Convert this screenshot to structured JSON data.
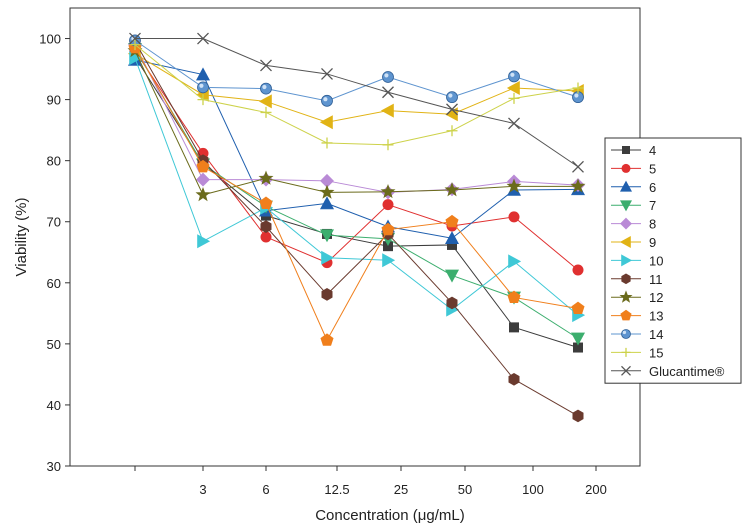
{
  "chart_data": {
    "type": "line",
    "title": "",
    "xlabel": "Concentration (μg/mL)",
    "ylabel": "Viability (%)",
    "ylim": [
      30,
      105
    ],
    "yticks": [
      30,
      40,
      50,
      60,
      70,
      80,
      90,
      100
    ],
    "x_categories": [
      "",
      "3",
      "6",
      "12.5",
      "25",
      "50",
      "100",
      "200"
    ],
    "legend_position": "right",
    "series": [
      {
        "name": "4",
        "color": "#3c3c3c",
        "marker": "square",
        "values": [
          97,
          79.5,
          71,
          68,
          66,
          66.2,
          52.7,
          49.4
        ]
      },
      {
        "name": "5",
        "color": "#e03030",
        "marker": "circle",
        "values": [
          98,
          81.2,
          67.5,
          63.3,
          72.8,
          69.3,
          70.8,
          62.1
        ]
      },
      {
        "name": "6",
        "color": "#1f5fae",
        "marker": "triangle-up",
        "values": [
          96.5,
          94.1,
          71.8,
          73,
          69.2,
          67.3,
          75.2,
          75.3
        ]
      },
      {
        "name": "7",
        "color": "#3cae6e",
        "marker": "triangle-down",
        "values": [
          98.3,
          79.4,
          72.5,
          67.8,
          67.2,
          61.2,
          57.6,
          50.9
        ]
      },
      {
        "name": "8",
        "color": "#b98ad6",
        "marker": "diamond",
        "values": [
          99,
          76.9,
          76.9,
          76.7,
          74.8,
          75.3,
          76.6,
          76
        ]
      },
      {
        "name": "9",
        "color": "#e1b315",
        "marker": "triangle-left",
        "values": [
          97.5,
          90.8,
          89.7,
          86.3,
          88.2,
          87.6,
          91.9,
          91.4
        ]
      },
      {
        "name": "10",
        "color": "#3fc8d6",
        "marker": "triangle-right",
        "values": [
          96.8,
          66.8,
          72.3,
          64.1,
          63.7,
          55.6,
          63.5,
          54.7
        ]
      },
      {
        "name": "11",
        "color": "#6a3a2e",
        "marker": "hexagon",
        "values": [
          99.5,
          80,
          69.2,
          58.1,
          68,
          56.7,
          44.2,
          38.2
        ]
      },
      {
        "name": "12",
        "color": "#6b6b1c",
        "marker": "star",
        "values": [
          98,
          74.4,
          77.1,
          74.8,
          74.9,
          75.2,
          75.8,
          75.8
        ]
      },
      {
        "name": "13",
        "color": "#f07f1c",
        "marker": "pentagon",
        "values": [
          98.5,
          79,
          73,
          50.6,
          68.7,
          70,
          57.6,
          55.8
        ]
      },
      {
        "name": "14",
        "color": "#5e94cf",
        "marker": "sphere",
        "values": [
          99.7,
          92,
          91.8,
          89.8,
          93.7,
          90.4,
          93.8,
          90.4
        ]
      },
      {
        "name": "15",
        "color": "#cdd24a",
        "marker": "plus",
        "values": [
          99,
          90,
          87.9,
          82.9,
          82.6,
          84.9,
          90.2,
          91.9
        ]
      },
      {
        "name": "Glucantime®",
        "color": "#555555",
        "marker": "cross",
        "values": [
          100,
          100,
          95.6,
          94.2,
          91.2,
          88.4,
          86.1,
          79
        ]
      }
    ]
  }
}
